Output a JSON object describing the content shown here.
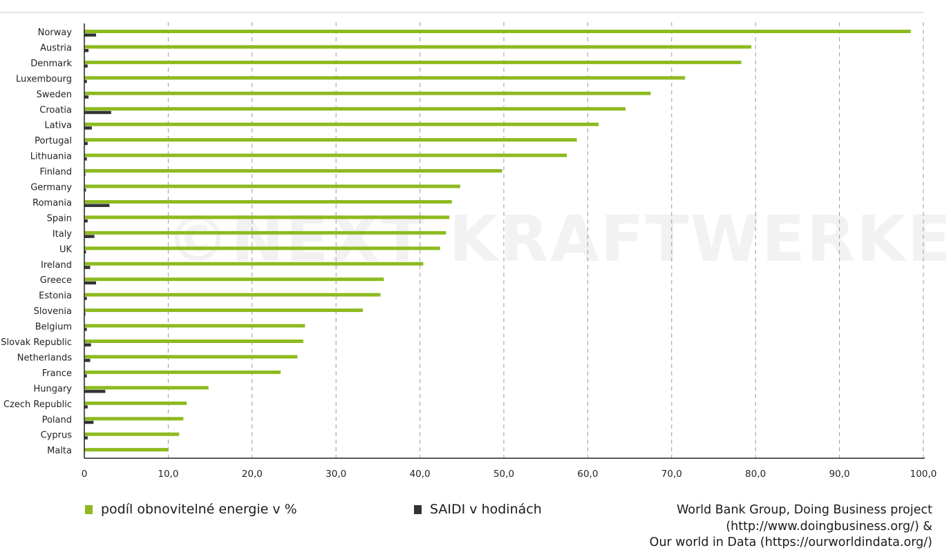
{
  "chart_data": {
    "type": "bar",
    "orientation": "horizontal",
    "categories": [
      "Norway",
      "Austria",
      "Denmark",
      "Luxembourg",
      "Sweden",
      "Croatia",
      "Lativa",
      "Portugal",
      "Lithuania",
      "Finland",
      "Germany",
      "Romania",
      "Spain",
      "Italy",
      "UK",
      "Ireland",
      "Greece",
      "Estonia",
      "Slovenia",
      "Belgium",
      "Slovak Republic",
      "Netherlands",
      "France",
      "Hungary",
      "Czech Republic",
      "Poland",
      "Cyprus",
      "Malta"
    ],
    "series": [
      {
        "name": "podíl obnovitelné energie v %",
        "color": "#8dba1f",
        "values": [
          98.5,
          79.5,
          78.3,
          71.6,
          67.5,
          64.5,
          61.3,
          58.7,
          57.5,
          49.8,
          44.8,
          43.8,
          43.5,
          43.1,
          42.4,
          40.4,
          35.7,
          35.3,
          33.2,
          26.3,
          26.1,
          25.4,
          23.4,
          14.8,
          12.2,
          11.8,
          11.3,
          10.0
        ]
      },
      {
        "name": "SAIDI v hodinách",
        "color": "#333333",
        "values": [
          1.4,
          0.5,
          0.4,
          0.3,
          0.5,
          3.2,
          0.9,
          0.4,
          0.3,
          0.1,
          0.2,
          3.0,
          0.4,
          1.2,
          0.2,
          0.7,
          1.4,
          0.3,
          0.1,
          0.3,
          0.8,
          0.7,
          0.3,
          2.5,
          0.4,
          1.1,
          0.4,
          0.0
        ]
      }
    ],
    "xlim": [
      0,
      100
    ],
    "xticks": [
      "0",
      "10,0",
      "20,0",
      "30,0",
      "40,0",
      "50,0",
      "60,0",
      "70,0",
      "80,0",
      "90,0",
      "100,0"
    ],
    "grid": "vertical dashed",
    "legend_position": "bottom"
  },
  "watermark": "©NEXT KRAFTWERKE",
  "source": {
    "line1": "World Bank Group, Doing Business project",
    "line2": "(http://www.doingbusiness.org/) &",
    "line3": "Our world in Data (https://ourworldindata.org/)"
  }
}
